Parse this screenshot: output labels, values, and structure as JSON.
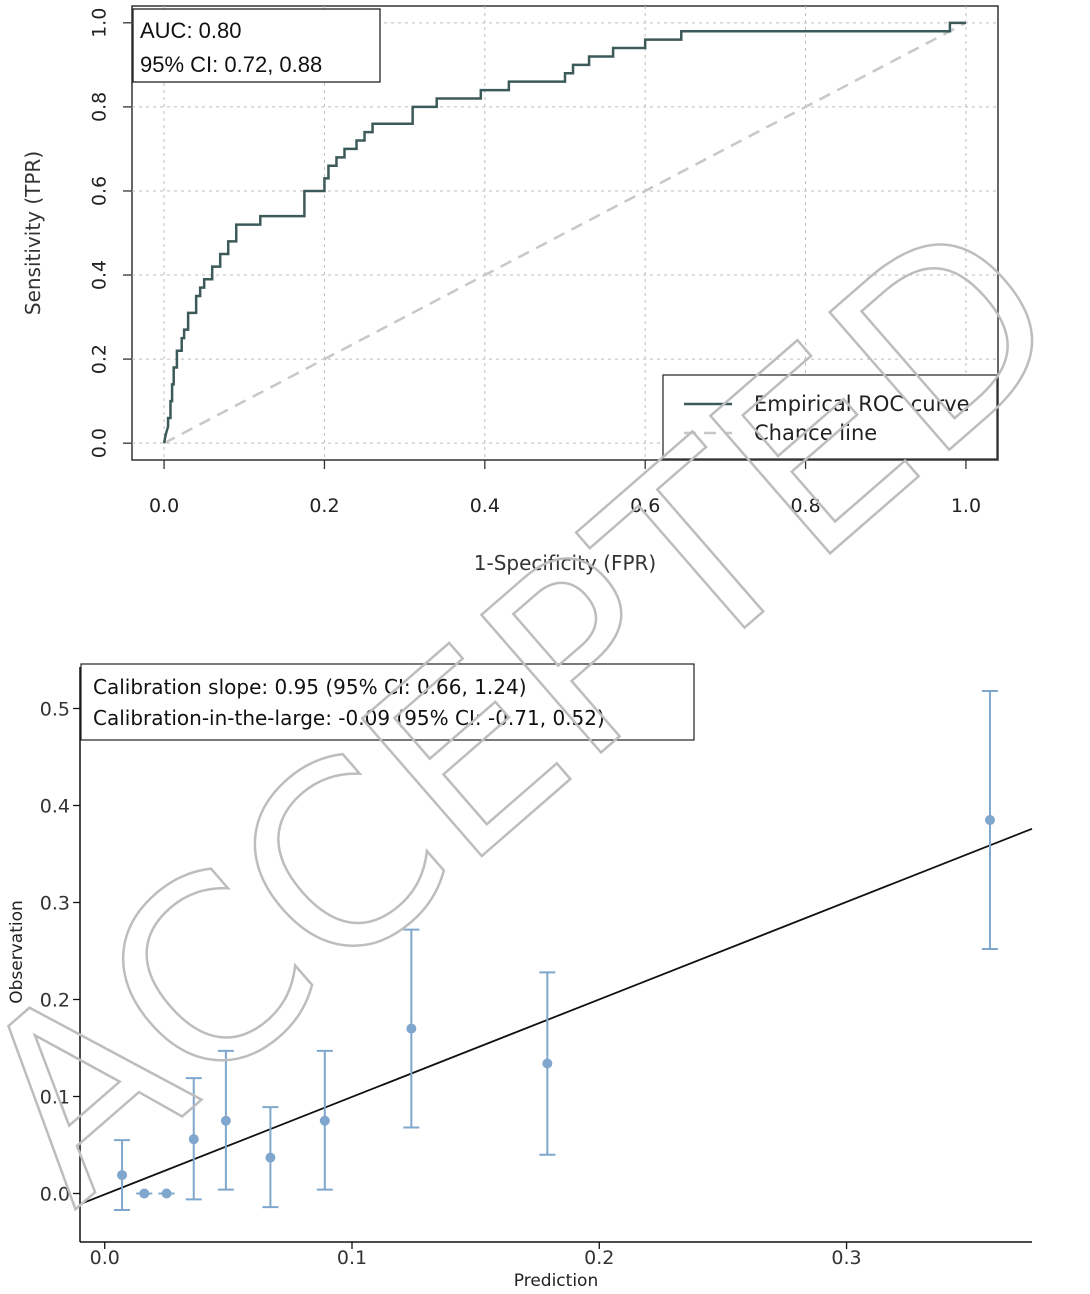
{
  "chart_data": [
    {
      "type": "line",
      "xlabel": "1-Specificity (FPR)",
      "ylabel": "Sensitivity (TPR)",
      "xlim": [
        -0.04,
        1.04
      ],
      "ylim": [
        -0.04,
        1.04
      ],
      "xticks": [
        "0.0",
        "0.2",
        "0.4",
        "0.6",
        "0.8",
        "1.0"
      ],
      "yticks": [
        "0.0",
        "0.2",
        "0.4",
        "0.6",
        "0.8",
        "1.0"
      ],
      "grid": true,
      "annotations": [
        "AUC: 0.80",
        "95% CI: 0.72, 0.88"
      ],
      "legend_position": "bottom-right",
      "series": [
        {
          "name": "Empirical ROC curve",
          "color": "#3d5a5a",
          "x": [
            0.0,
            0.002,
            0.005,
            0.005,
            0.008,
            0.008,
            0.01,
            0.01,
            0.012,
            0.012,
            0.016,
            0.016,
            0.022,
            0.022,
            0.025,
            0.025,
            0.03,
            0.03,
            0.04,
            0.04,
            0.045,
            0.045,
            0.05,
            0.05,
            0.06,
            0.06,
            0.07,
            0.07,
            0.08,
            0.08,
            0.09,
            0.09,
            0.12,
            0.12,
            0.13,
            0.13,
            0.175,
            0.175,
            0.2,
            0.2,
            0.205,
            0.205,
            0.215,
            0.215,
            0.225,
            0.225,
            0.24,
            0.24,
            0.25,
            0.25,
            0.26,
            0.26,
            0.31,
            0.31,
            0.34,
            0.34,
            0.395,
            0.395,
            0.43,
            0.43,
            0.5,
            0.5,
            0.51,
            0.51,
            0.53,
            0.53,
            0.56,
            0.56,
            0.57,
            0.57,
            0.6,
            0.6,
            0.645,
            0.645,
            0.655,
            0.655,
            0.98,
            0.98,
            1.0
          ],
          "y": [
            0.0,
            0.02,
            0.04,
            0.06,
            0.06,
            0.1,
            0.1,
            0.14,
            0.14,
            0.18,
            0.18,
            0.22,
            0.22,
            0.25,
            0.25,
            0.27,
            0.27,
            0.31,
            0.31,
            0.35,
            0.35,
            0.37,
            0.37,
            0.39,
            0.39,
            0.42,
            0.42,
            0.45,
            0.45,
            0.48,
            0.48,
            0.52,
            0.52,
            0.54,
            0.54,
            0.54,
            0.54,
            0.6,
            0.6,
            0.63,
            0.63,
            0.66,
            0.66,
            0.68,
            0.68,
            0.7,
            0.7,
            0.72,
            0.72,
            0.74,
            0.74,
            0.76,
            0.76,
            0.8,
            0.8,
            0.82,
            0.82,
            0.84,
            0.84,
            0.86,
            0.86,
            0.88,
            0.88,
            0.9,
            0.9,
            0.92,
            0.92,
            0.94,
            0.94,
            0.94,
            0.94,
            0.96,
            0.96,
            0.98,
            0.98,
            0.98,
            0.98,
            1.0,
            1.0
          ]
        },
        {
          "name": "Chance line",
          "color": "#c8c8c8",
          "x": [
            0.0,
            1.0
          ],
          "y": [
            0.0,
            1.0
          ]
        }
      ]
    },
    {
      "type": "scatter",
      "xlabel": "Prediction",
      "ylabel": "Observation",
      "xlim": [
        -0.01,
        0.375
      ],
      "ylim": [
        -0.05,
        0.55
      ],
      "xticks": [
        "0.0",
        "0.1",
        "0.2",
        "0.3"
      ],
      "yticks": [
        "0.0",
        "0.1",
        "0.2",
        "0.3",
        "0.4",
        "0.5"
      ],
      "grid": false,
      "annotations": [
        "Calibration slope: 0.95 (95% CI: 0.66, 1.24)",
        "Calibration-in-the-large: -0.09 (95% CI: -0.71, 0.52)"
      ],
      "point_color": "#7fa6cc",
      "points": [
        {
          "x": 0.007,
          "y": 0.019,
          "lo": -0.017,
          "hi": 0.055
        },
        {
          "x": 0.016,
          "y": 0.0,
          "lo": 0.0,
          "hi": 0.0
        },
        {
          "x": 0.025,
          "y": 0.0,
          "lo": 0.0,
          "hi": 0.0
        },
        {
          "x": 0.036,
          "y": 0.056,
          "lo": -0.006,
          "hi": 0.119
        },
        {
          "x": 0.049,
          "y": 0.075,
          "lo": 0.004,
          "hi": 0.147
        },
        {
          "x": 0.067,
          "y": 0.037,
          "lo": -0.014,
          "hi": 0.089
        },
        {
          "x": 0.089,
          "y": 0.075,
          "lo": 0.004,
          "hi": 0.147
        },
        {
          "x": 0.124,
          "y": 0.17,
          "lo": 0.068,
          "hi": 0.272
        },
        {
          "x": 0.179,
          "y": 0.134,
          "lo": 0.04,
          "hi": 0.228
        },
        {
          "x": 0.358,
          "y": 0.385,
          "lo": 0.252,
          "hi": 0.518
        }
      ],
      "fit_line": {
        "color": "#111111",
        "x": [
          -0.01,
          0.375
        ],
        "y": [
          -0.011,
          0.376
        ]
      }
    }
  ],
  "watermark": {
    "text": "ACCEPTED",
    "color": "#bdbdbd"
  }
}
